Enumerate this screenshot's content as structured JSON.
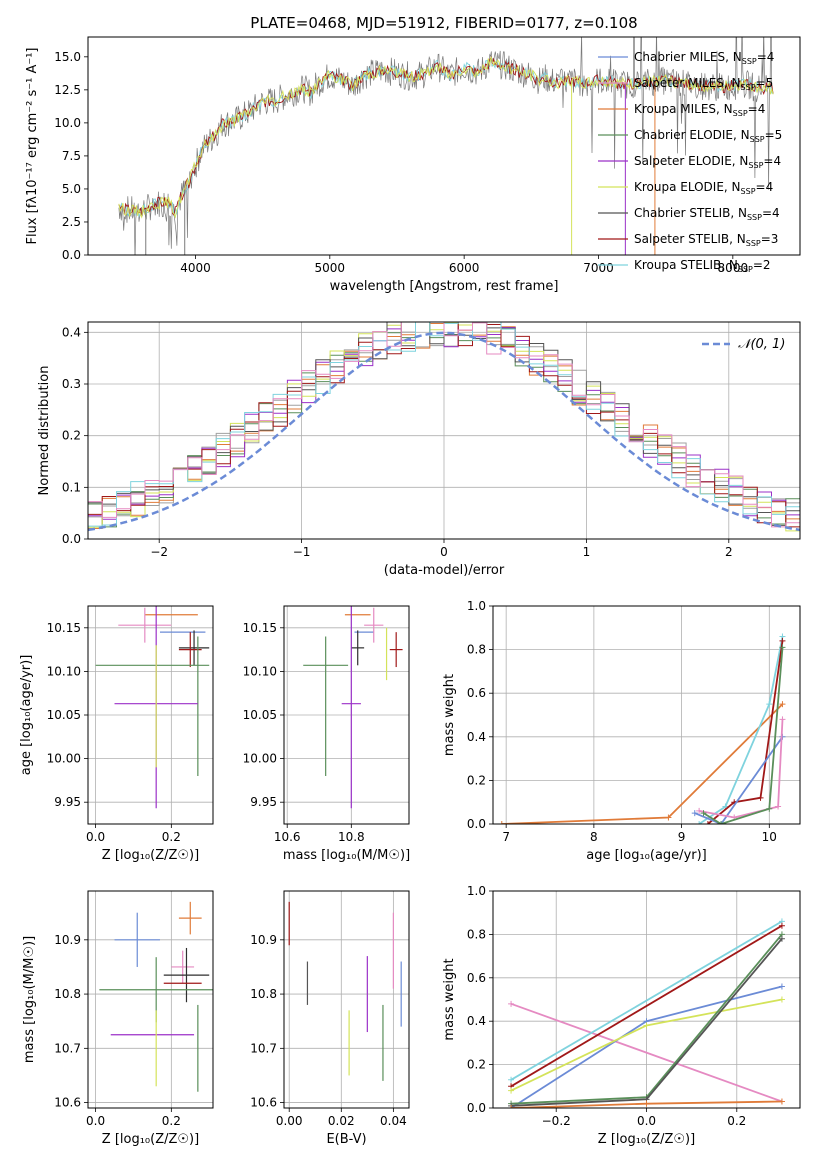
{
  "figure": {
    "title": "PLATE=0468, MJD=51912, FIBERID=0177, z=0.108",
    "series_colors": [
      "#2f2f2f",
      "#a0a0a0",
      "#e07b39",
      "#5a8f5a",
      "#9b30c8",
      "#d4e35a",
      "#555555",
      "#a01818",
      "#7fd3de",
      "#e58ac2",
      "#6b8bd6"
    ]
  },
  "chart_data": [
    {
      "id": "spectrum",
      "type": "line",
      "title": "PLATE=0468, MJD=51912, FIBERID=0177, z=0.108",
      "xlabel": "wavelength [Angstrom, rest frame]",
      "ylabel": "Flux [f_λ10^-17 erg cm^-2 s^-1 A^-1]",
      "xlim": [
        3200,
        8500
      ],
      "ylim": [
        0,
        16.5
      ],
      "xticks": [
        4000,
        5000,
        6000,
        7000,
        8000
      ],
      "yticks": [
        0.0,
        2.5,
        5.0,
        7.5,
        10.0,
        12.5,
        15.0
      ],
      "x": [
        3430,
        3500,
        3600,
        3700,
        3800,
        3850,
        3900,
        3950,
        4000,
        4050,
        4100,
        4150,
        4200,
        4300,
        4400,
        4500,
        4600,
        4700,
        4800,
        4861,
        4900,
        5000,
        5100,
        5175,
        5250,
        5400,
        5500,
        5600,
        5700,
        5800,
        5893,
        6000,
        6100,
        6200,
        6300,
        6400,
        6500,
        6563,
        6600,
        6700,
        6800,
        6900,
        7000,
        7100,
        7200,
        7300,
        7400,
        7500,
        7600,
        7700,
        7800,
        7900,
        8000,
        8100,
        8200,
        8300
      ],
      "y": [
        3.6,
        3.4,
        3.3,
        3.9,
        4.0,
        3.2,
        4.6,
        5.5,
        6.8,
        8.0,
        8.6,
        9.1,
        9.9,
        10.2,
        10.8,
        11.6,
        11.7,
        12.2,
        12.6,
        12.3,
        12.9,
        13.6,
        13.2,
        12.8,
        13.6,
        14.0,
        13.8,
        13.5,
        13.7,
        14.3,
        13.6,
        14.2,
        13.8,
        14.6,
        14.3,
        13.9,
        13.6,
        13.2,
        13.4,
        13.0,
        13.2,
        13.0,
        13.2,
        13.1,
        12.9,
        13.0,
        13.1,
        13.2,
        13.0,
        12.9,
        12.8,
        12.7,
        12.8,
        12.9,
        12.6,
        12.6
      ],
      "legend": [
        "Chabrier MILES, N_SSP=4",
        "Salpeter MILES, N_SSP=5",
        "Kroupa MILES, N_SSP=4",
        "Chabrier ELODIE, N_SSP=5",
        "Salpeter ELODIE, N_SSP=4",
        "Kroupa ELODIE, N_SSP=4",
        "Chabrier STELIB, N_SSP=4",
        "Salpeter STELIB, N_SSP=3",
        "Kroupa STELIB, N_SSP=2"
      ],
      "legend_position": "right"
    },
    {
      "id": "residuals",
      "type": "step",
      "xlabel": "(data-model)/error",
      "ylabel": "Normed distribution",
      "xlim": [
        -2.5,
        2.5
      ],
      "ylim": [
        0,
        0.42
      ],
      "xticks": [
        -2,
        -1,
        0,
        1,
        2
      ],
      "yticks": [
        0.0,
        0.1,
        0.2,
        0.3,
        0.4
      ],
      "legend": [
        "N(0, 1)"
      ],
      "legend_position": "upper right",
      "grid": true
    },
    {
      "id": "age-vs-Z",
      "type": "errorbar",
      "xlabel": "Z [log10(Z/Z_sun)]",
      "ylabel": "age [log10(age/yr)]",
      "xlim": [
        -0.02,
        0.31
      ],
      "ylim": [
        9.925,
        10.175
      ],
      "xticks": [
        0.0,
        0.2
      ],
      "yticks": [
        9.95,
        10.0,
        10.05,
        10.1,
        10.15
      ],
      "points": [
        {
          "x": 0.2,
          "xerr": 0.07,
          "y": 10.165,
          "yerr": 0.0
        },
        {
          "x": 0.23,
          "xerr": 0.06,
          "y": 10.145,
          "yerr": 0.0
        },
        {
          "x": 0.13,
          "xerr": 0.07,
          "y": 10.153,
          "yerr": 0.02
        },
        {
          "x": 0.26,
          "xerr": 0.04,
          "y": 10.127,
          "yerr": 0.02
        },
        {
          "x": 0.25,
          "xerr": 0.03,
          "y": 10.125,
          "yerr": 0.02
        },
        {
          "x": 0.15,
          "xerr": 0.15,
          "y": 10.107,
          "yerr": 0.0
        },
        {
          "x": 0.27,
          "xerr": 0.0,
          "y": 10.06,
          "yerr": 0.08
        },
        {
          "x": 0.16,
          "xerr": 0.11,
          "y": 10.063,
          "yerr": 0.12
        },
        {
          "x": 0.16,
          "xerr": 0.0,
          "y": 10.06,
          "yerr": 0.07
        }
      ]
    },
    {
      "id": "age-vs-mass",
      "type": "errorbar",
      "xlabel": "mass [log10(M/M_sun)]",
      "xlim": [
        10.59,
        10.98
      ],
      "ylim": [
        9.925,
        10.175
      ],
      "xticks": [
        10.6,
        10.8
      ],
      "yticks": [
        9.95,
        10.0,
        10.05,
        10.1,
        10.15
      ],
      "points": [
        {
          "x": 10.82,
          "xerr": 0.04,
          "y": 10.165,
          "yerr": 0.0
        },
        {
          "x": 10.84,
          "xerr": 0.03,
          "y": 10.145,
          "yerr": 0.0
        },
        {
          "x": 10.87,
          "xerr": 0.03,
          "y": 10.153,
          "yerr": 0.02
        },
        {
          "x": 10.82,
          "xerr": 0.02,
          "y": 10.127,
          "yerr": 0.02
        },
        {
          "x": 10.94,
          "xerr": 0.02,
          "y": 10.125,
          "yerr": 0.02
        },
        {
          "x": 10.72,
          "xerr": 0.07,
          "y": 10.107,
          "yerr": 0.0
        },
        {
          "x": 10.72,
          "xerr": 0.0,
          "y": 10.06,
          "yerr": 0.08
        },
        {
          "x": 10.8,
          "xerr": 0.03,
          "y": 10.063,
          "yerr": 0.12
        },
        {
          "x": 10.91,
          "xerr": 0.0,
          "y": 10.12,
          "yerr": 0.03
        }
      ]
    },
    {
      "id": "mass-weight-vs-age",
      "type": "line",
      "xlabel": "age [log10(age/yr)]",
      "ylabel": "mass weight",
      "xlim": [
        6.85,
        10.35
      ],
      "ylim": [
        0,
        1.0
      ],
      "xticks": [
        7,
        8,
        9,
        10
      ],
      "yticks": [
        0.0,
        0.2,
        0.4,
        0.6,
        0.8,
        1.0
      ],
      "grid": true,
      "series": [
        {
          "x": [
            6.95,
            8.85,
            10.15
          ],
          "y": [
            0.0,
            0.03,
            0.55
          ]
        },
        {
          "x": [
            9.2,
            9.5,
            10.0,
            10.15
          ],
          "y": [
            0.0,
            0.08,
            0.55,
            0.86
          ]
        },
        {
          "x": [
            9.3,
            9.6,
            9.9,
            10.15
          ],
          "y": [
            0.0,
            0.1,
            0.12,
            0.84
          ]
        },
        {
          "x": [
            9.15,
            9.45,
            10.15
          ],
          "y": [
            0.05,
            0.0,
            0.4
          ]
        },
        {
          "x": [
            9.2,
            9.6,
            10.1,
            10.15
          ],
          "y": [
            0.06,
            0.03,
            0.08,
            0.48
          ]
        },
        {
          "x": [
            9.25,
            9.45,
            10.0,
            10.15
          ],
          "y": [
            0.05,
            0.0,
            0.07,
            0.81
          ]
        }
      ]
    },
    {
      "id": "mass-vs-Z",
      "type": "errorbar",
      "xlabel": "Z [log10(Z/Z_sun)]",
      "ylabel": "mass [log10(M/M_sun)]",
      "xlim": [
        -0.02,
        0.31
      ],
      "ylim": [
        10.59,
        10.99
      ],
      "xticks": [
        0.0,
        0.2
      ],
      "yticks": [
        10.6,
        10.7,
        10.8,
        10.9
      ],
      "points": [
        {
          "x": 0.25,
          "xerr": 0.03,
          "y": 10.94,
          "yerr": 0.03
        },
        {
          "x": 0.11,
          "xerr": 0.06,
          "y": 10.9,
          "yerr": 0.05
        },
        {
          "x": 0.23,
          "xerr": 0.03,
          "y": 10.85,
          "yerr": 0.03
        },
        {
          "x": 0.24,
          "xerr": 0.06,
          "y": 10.835,
          "yerr": 0.05
        },
        {
          "x": 0.23,
          "xerr": 0.05,
          "y": 10.82,
          "yerr": 0.0
        },
        {
          "x": 0.16,
          "xerr": 0.15,
          "y": 10.808,
          "yerr": 0.06
        },
        {
          "x": 0.27,
          "xerr": 0.0,
          "y": 10.7,
          "yerr": 0.08
        },
        {
          "x": 0.15,
          "xerr": 0.11,
          "y": 10.725,
          "yerr": 0.0
        },
        {
          "x": 0.16,
          "xerr": 0.0,
          "y": 10.7,
          "yerr": 0.07
        }
      ]
    },
    {
      "id": "mass-vs-ebv",
      "type": "errorbar",
      "xlabel": "E(B-V)",
      "xlim": [
        -0.002,
        0.046
      ],
      "ylim": [
        10.59,
        10.99
      ],
      "xticks": [
        0.0,
        0.02,
        0.04
      ],
      "yticks": [
        10.6,
        10.7,
        10.8,
        10.9
      ],
      "points": [
        {
          "x": 0.0,
          "y": 10.93,
          "yerr": 0.04
        },
        {
          "x": 0.007,
          "y": 10.82,
          "yerr": 0.04
        },
        {
          "x": 0.023,
          "y": 10.71,
          "yerr": 0.06
        },
        {
          "x": 0.03,
          "y": 10.8,
          "yerr": 0.07
        },
        {
          "x": 0.036,
          "y": 10.71,
          "yerr": 0.07
        },
        {
          "x": 0.04,
          "y": 10.88,
          "yerr": 0.07
        },
        {
          "x": 0.043,
          "y": 10.8,
          "yerr": 0.06
        }
      ]
    },
    {
      "id": "mass-weight-vs-Z",
      "type": "line",
      "xlabel": "Z [log10(Z/Z_sun)]",
      "ylabel": "mass weight",
      "xlim": [
        -0.34,
        0.34
      ],
      "ylim": [
        0,
        1.0
      ],
      "xticks": [
        -0.2,
        0.0,
        0.2
      ],
      "yticks": [
        0.0,
        0.2,
        0.4,
        0.6,
        0.8,
        1.0
      ],
      "grid": true,
      "series": [
        {
          "x": [
            -0.3,
            0.3
          ],
          "y": [
            0.48,
            0.03
          ]
        },
        {
          "x": [
            -0.3,
            0.0,
            0.3
          ],
          "y": [
            0.0,
            0.4,
            0.56
          ]
        },
        {
          "x": [
            -0.3,
            0.3
          ],
          "y": [
            0.13,
            0.86
          ]
        },
        {
          "x": [
            -0.3,
            0.3
          ],
          "y": [
            0.1,
            0.84
          ]
        },
        {
          "x": [
            -0.3,
            0.0,
            0.3
          ],
          "y": [
            0.08,
            0.38,
            0.5
          ]
        },
        {
          "x": [
            -0.3,
            0.0,
            0.3
          ],
          "y": [
            0.02,
            0.05,
            0.8
          ]
        },
        {
          "x": [
            -0.3,
            0.0,
            0.3
          ],
          "y": [
            0.01,
            0.04,
            0.78
          ]
        },
        {
          "x": [
            -0.3,
            0.0,
            0.3
          ],
          "y": [
            0.0,
            0.02,
            0.03
          ]
        }
      ]
    }
  ]
}
